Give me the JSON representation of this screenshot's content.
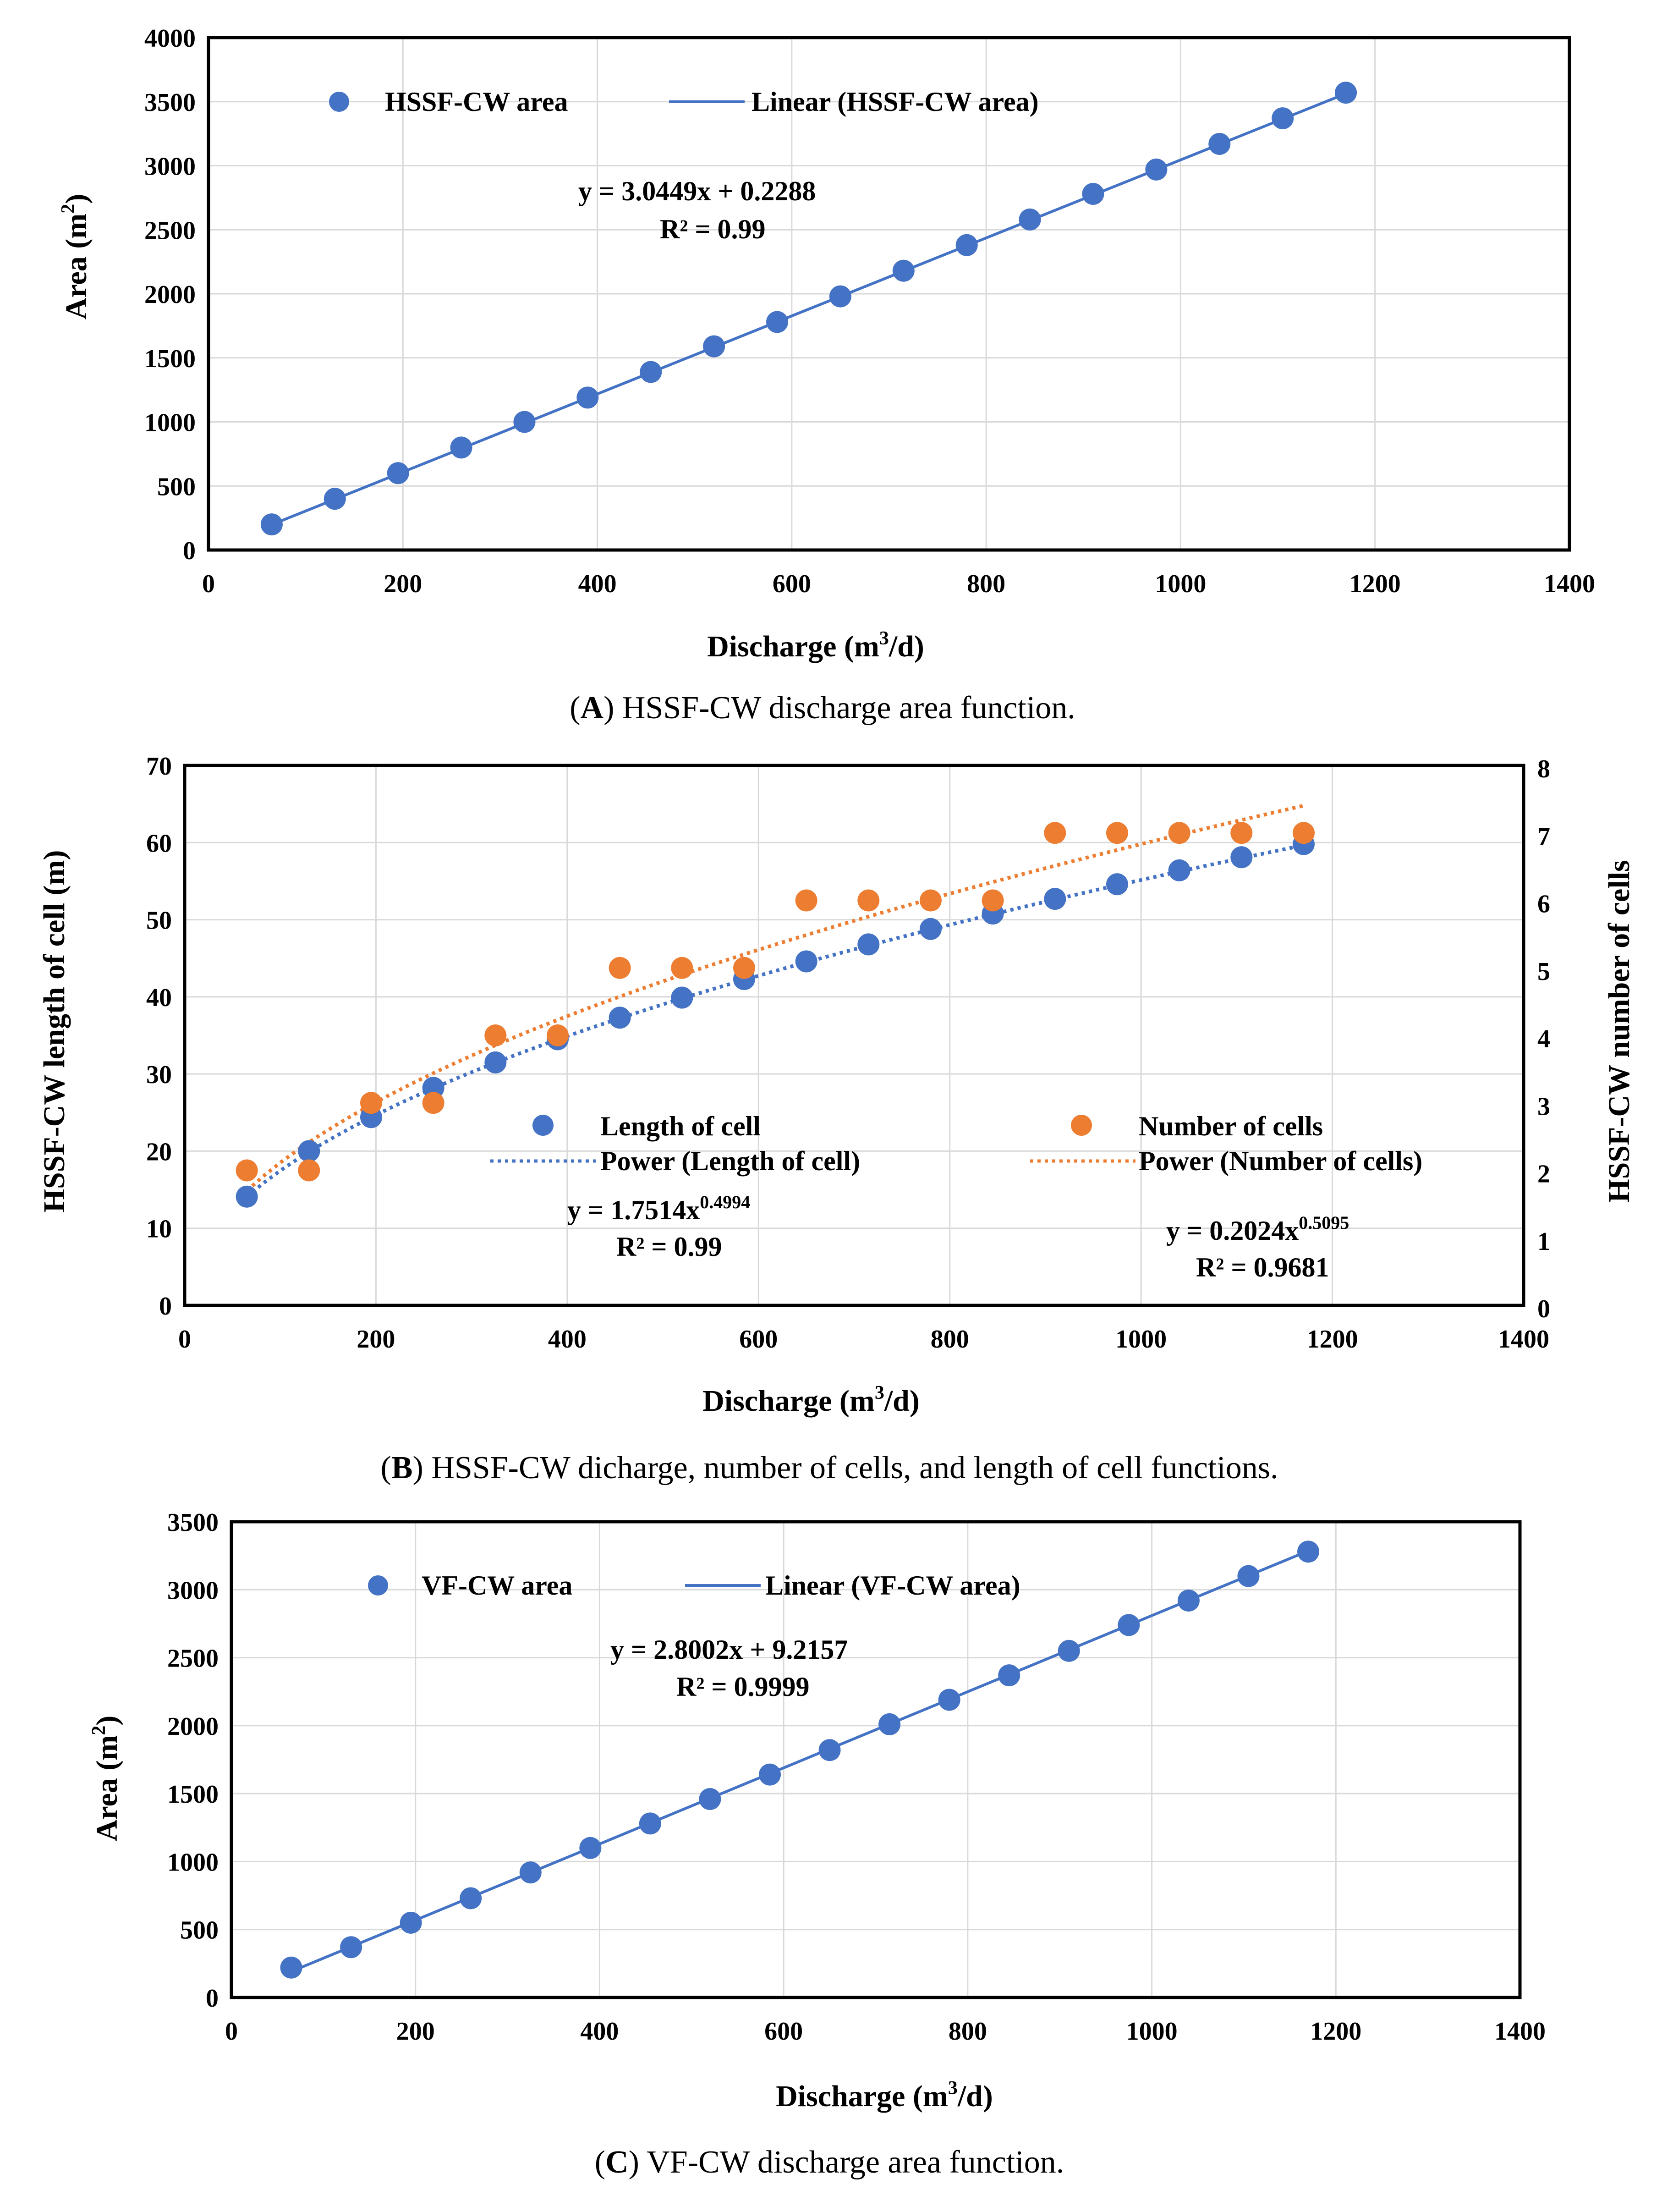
{
  "colors": {
    "blue": "#4472c4",
    "orange": "#ed7d31",
    "grid": "#d9d9d9",
    "axis": "#000000"
  },
  "chart_data": [
    {
      "type": "scatter",
      "title": "",
      "xlabel": "Discharge (m3/d)",
      "ylabel": "Area (m2)",
      "xlim": [
        0,
        1400
      ],
      "ylim": [
        0,
        4000
      ],
      "xticks": [
        "0",
        "200",
        "400",
        "600",
        "800",
        "1000",
        "1200",
        "1400"
      ],
      "yticks": [
        "0",
        "500",
        "1000",
        "1500",
        "2000",
        "2500",
        "3000",
        "3500",
        "4000"
      ],
      "x": [
        65,
        130,
        195,
        260,
        325,
        390,
        455,
        520,
        585,
        650,
        715,
        780,
        845,
        910,
        975,
        1040,
        1105,
        1170
      ],
      "series": [
        {
          "name": "HSSF-CW area",
          "values": [
            200,
            400,
            600,
            800,
            1000,
            1190,
            1390,
            1590,
            1780,
            1980,
            2180,
            2380,
            2580,
            2780,
            2970,
            3170,
            3370,
            3570
          ]
        }
      ],
      "trendlines": [
        {
          "name": "Linear (HSSF-CW area)",
          "kind": "linear",
          "a": 3.0449,
          "b": 0.2288,
          "from": 65,
          "to": 1170
        }
      ],
      "legend": [
        "HSSF-CW area",
        "Linear (HSSF-CW area)"
      ],
      "equations": [
        "y = 3.0449x + 0.2288",
        "R² = 0.99"
      ],
      "caption_label": "A",
      "caption_text": "HSSF-CW discharge area function."
    },
    {
      "type": "scatter",
      "title": "",
      "xlabel": "Discharge (m3/d)",
      "ylabel": "HSSF-CW length of cell (m)",
      "y2label": "HSSF-CW number of cells",
      "xlim": [
        0,
        1400
      ],
      "ylim": [
        0,
        70
      ],
      "y2lim": [
        0,
        8
      ],
      "xticks": [
        "0",
        "200",
        "400",
        "600",
        "800",
        "1000",
        "1200",
        "1400"
      ],
      "yticks": [
        "0",
        "10",
        "20",
        "30",
        "40",
        "50",
        "60",
        "70"
      ],
      "y2ticks": [
        "0",
        "1",
        "2",
        "3",
        "4",
        "5",
        "6",
        "7",
        "8"
      ],
      "x": [
        65,
        130,
        195,
        260,
        325,
        390,
        455,
        520,
        585,
        650,
        715,
        780,
        845,
        910,
        975,
        1040,
        1105,
        1170
      ],
      "series": [
        {
          "name": "Length of cell",
          "axis": "left",
          "values": [
            14.1,
            20.0,
            24.4,
            28.2,
            31.5,
            34.5,
            37.3,
            39.9,
            42.3,
            44.6,
            46.8,
            48.8,
            50.8,
            52.7,
            54.6,
            56.4,
            58.1,
            59.8
          ]
        },
        {
          "name": "Number of cells",
          "axis": "right",
          "values": [
            2,
            2,
            3,
            3,
            4,
            4,
            5,
            5,
            5,
            6,
            6,
            6,
            6,
            7,
            7,
            7,
            7,
            7
          ]
        }
      ],
      "trendlines": [
        {
          "name": "Power (Length of cell)",
          "kind": "power",
          "axis": "left",
          "a": 1.7514,
          "b": 0.4994,
          "from": 65,
          "to": 1170
        },
        {
          "name": "Power (Number of cells)",
          "kind": "power",
          "axis": "right",
          "a": 0.2024,
          "b": 0.5095,
          "from": 65,
          "to": 1170
        }
      ],
      "legend": [
        "Length of cell",
        "Number of cells",
        "Power (Length of cell)",
        "Power (Number of cells)"
      ],
      "equations_left": [
        "y = 1.7514x",
        "0.4994",
        "R² = 0.99"
      ],
      "equations_right": [
        "y = 0.2024x",
        "0.5095",
        "R² = 0.9681"
      ],
      "caption_label": "B",
      "caption_text": "HSSF-CW dicharge, number of cells, and length of cell functions."
    },
    {
      "type": "scatter",
      "title": "",
      "xlabel": "Discharge (m3/d)",
      "ylabel": "Area (m2)",
      "xlim": [
        0,
        1400
      ],
      "ylim": [
        0,
        3500
      ],
      "xticks": [
        "0",
        "200",
        "400",
        "600",
        "800",
        "1000",
        "1200",
        "1400"
      ],
      "yticks": [
        "0",
        "500",
        "1000",
        "1500",
        "2000",
        "2500",
        "3000",
        "3500"
      ],
      "x": [
        65,
        130,
        195,
        260,
        325,
        390,
        455,
        520,
        585,
        650,
        715,
        780,
        845,
        910,
        975,
        1040,
        1105,
        1170
      ],
      "series": [
        {
          "name": "VF-CW area",
          "values": [
            220,
            370,
            550,
            730,
            920,
            1100,
            1280,
            1460,
            1640,
            1820,
            2010,
            2190,
            2370,
            2550,
            2740,
            2920,
            3100,
            3280
          ]
        }
      ],
      "trendlines": [
        {
          "name": "Linear (VF-CW area)",
          "kind": "linear",
          "a": 2.8002,
          "b": 9.2157,
          "from": 65,
          "to": 1170
        }
      ],
      "legend": [
        "VF-CW area",
        "Linear (VF-CW area)"
      ],
      "equations": [
        "y = 2.8002x + 9.2157",
        "R² = 0.9999"
      ],
      "caption_label": "C",
      "caption_text": "VF-CW discharge area function."
    }
  ],
  "axis_text": {
    "discharge": "Discharge (m",
    "discharge_sup": "3",
    "discharge_end": "/d)",
    "area": "Area (m",
    "area_sup": "2",
    "area_end": ")",
    "caption_open": "(",
    "caption_close": ")"
  }
}
